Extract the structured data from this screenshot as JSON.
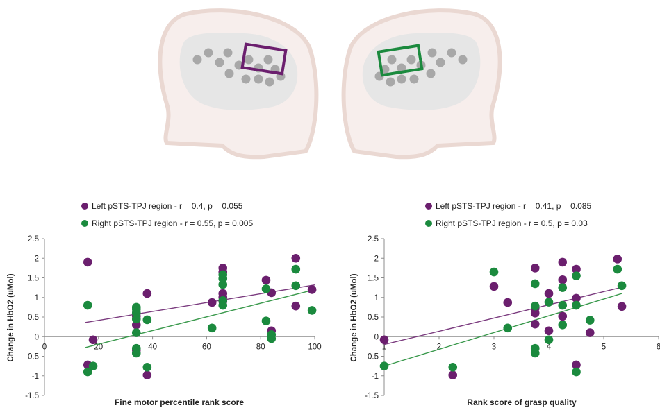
{
  "colors": {
    "left": "#6b1f6e",
    "right": "#1b8a3e",
    "left_line": "#7a3a7e",
    "right_line": "#3c9a4e",
    "axis": "#8c8c8c",
    "text": "#222222",
    "head_fill": "#f7eeec",
    "head_stroke": "#ead8d2",
    "brain": "#e6e6e6",
    "optode": "#a8a8a8"
  },
  "illustration": {
    "left_head_icon": "infant-head-left-facing",
    "right_head_icon": "infant-head-right-facing"
  },
  "chart_data": [
    {
      "type": "scatter",
      "title": "",
      "xlabel": "Fine motor percentile rank score",
      "ylabel": "Change in HbO2 (uMol)",
      "xlim": [
        0,
        100
      ],
      "ylim": [
        -1.5,
        2.5
      ],
      "xticks": [
        0,
        20,
        40,
        60,
        80,
        100
      ],
      "yticks": [
        -1.5,
        -1,
        -0.5,
        0,
        0.5,
        1,
        1.5,
        2,
        2.5
      ],
      "grid": false,
      "legend_position": "top-left",
      "series": [
        {
          "name": "Left pSTS-TPJ region - r = 0.4, p = 0.055",
          "color_key": "left",
          "points": [
            [
              16,
              1.9
            ],
            [
              16,
              -0.72
            ],
            [
              18,
              -0.08
            ],
            [
              34,
              0.6
            ],
            [
              34,
              0.52
            ],
            [
              34,
              0.3
            ],
            [
              34,
              -0.35
            ],
            [
              38,
              1.1
            ],
            [
              38,
              -0.98
            ],
            [
              62,
              0.87
            ],
            [
              66,
              1.75
            ],
            [
              66,
              1.65
            ],
            [
              66,
              1.1
            ],
            [
              66,
              1.0
            ],
            [
              66,
              0.9
            ],
            [
              82,
              1.44
            ],
            [
              84,
              1.12
            ],
            [
              84,
              0.15
            ],
            [
              93,
              2.0
            ],
            [
              93,
              0.78
            ],
            [
              99,
              1.2
            ]
          ],
          "trend": [
            [
              15,
              0.36
            ],
            [
              100,
              1.32
            ]
          ]
        },
        {
          "name": "Right pSTS-TPJ region - r = 0.55, p = 0.005",
          "color_key": "right",
          "points": [
            [
              16,
              0.8
            ],
            [
              16,
              -0.9
            ],
            [
              18,
              -0.75
            ],
            [
              34,
              0.75
            ],
            [
              34,
              0.7
            ],
            [
              34,
              0.6
            ],
            [
              34,
              0.45
            ],
            [
              34,
              0.1
            ],
            [
              34,
              -0.3
            ],
            [
              34,
              -0.42
            ],
            [
              38,
              0.43
            ],
            [
              38,
              -0.78
            ],
            [
              62,
              0.22
            ],
            [
              66,
              1.58
            ],
            [
              66,
              1.48
            ],
            [
              66,
              1.33
            ],
            [
              66,
              0.92
            ],
            [
              66,
              0.8
            ],
            [
              82,
              1.22
            ],
            [
              82,
              0.4
            ],
            [
              84,
              0.05
            ],
            [
              84,
              -0.05
            ],
            [
              93,
              1.72
            ],
            [
              93,
              1.3
            ],
            [
              99,
              0.67
            ]
          ],
          "trend": [
            [
              15,
              -0.28
            ],
            [
              100,
              1.2
            ]
          ]
        }
      ]
    },
    {
      "type": "scatter",
      "title": "",
      "xlabel": "Rank score of grasp quality",
      "ylabel": "Change in HbO2 (uMol)",
      "xlim": [
        1,
        6
      ],
      "ylim": [
        -1.5,
        2.5
      ],
      "xticks": [
        1,
        2,
        3,
        4,
        5,
        6
      ],
      "yticks": [
        -1.5,
        -1,
        -0.5,
        0,
        0.5,
        1,
        1.5,
        2,
        2.5
      ],
      "grid": false,
      "legend_position": "top-left",
      "series": [
        {
          "name": "Left pSTS-TPJ region - r = 0.41, p = 0.085",
          "color_key": "left",
          "points": [
            [
              1,
              -0.08
            ],
            [
              2.25,
              -0.98
            ],
            [
              3,
              1.28
            ],
            [
              3.25,
              0.87
            ],
            [
              3.75,
              1.75
            ],
            [
              3.75,
              0.72
            ],
            [
              3.75,
              0.6
            ],
            [
              3.75,
              0.32
            ],
            [
              4,
              1.1
            ],
            [
              4,
              0.15
            ],
            [
              4.25,
              1.9
            ],
            [
              4.25,
              1.45
            ],
            [
              4.25,
              0.52
            ],
            [
              4.5,
              1.72
            ],
            [
              4.5,
              0.98
            ],
            [
              4.5,
              -0.72
            ],
            [
              4.75,
              0.1
            ],
            [
              5.25,
              1.98
            ],
            [
              5.33,
              0.77
            ]
          ],
          "trend": [
            [
              1,
              -0.2
            ],
            [
              5.33,
              1.26
            ]
          ]
        },
        {
          "name": "Right pSTS-TPJ region - r = 0.5, p = 0.03",
          "color_key": "right",
          "points": [
            [
              1,
              -0.75
            ],
            [
              2.25,
              -0.78
            ],
            [
              3,
              1.65
            ],
            [
              3.25,
              0.22
            ],
            [
              3.75,
              1.35
            ],
            [
              3.75,
              0.78
            ],
            [
              3.75,
              -0.3
            ],
            [
              3.75,
              -0.42
            ],
            [
              4,
              0.88
            ],
            [
              4,
              -0.08
            ],
            [
              4.25,
              1.25
            ],
            [
              4.25,
              0.8
            ],
            [
              4.25,
              0.3
            ],
            [
              4.5,
              1.55
            ],
            [
              4.5,
              0.8
            ],
            [
              4.5,
              -0.9
            ],
            [
              4.75,
              0.42
            ],
            [
              5.25,
              1.72
            ],
            [
              5.33,
              1.3
            ]
          ],
          "trend": [
            [
              1,
              -0.75
            ],
            [
              5.33,
              1.1
            ]
          ]
        }
      ]
    }
  ]
}
